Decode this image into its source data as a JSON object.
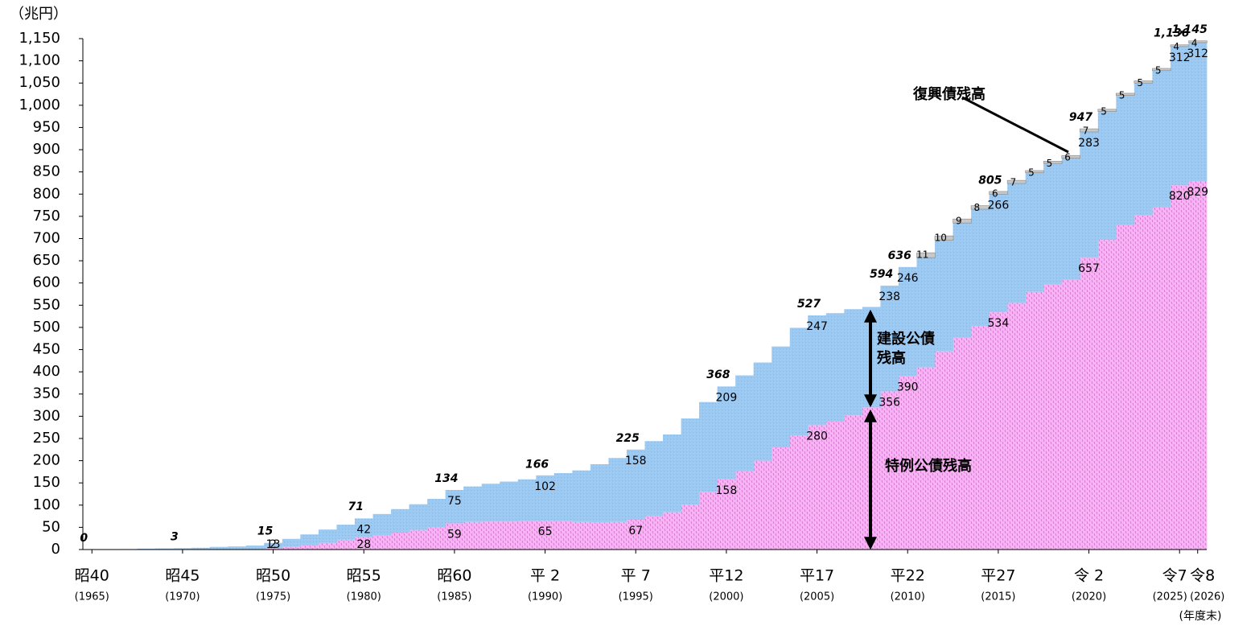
{
  "chart_data": {
    "type": "stacked-step",
    "y_unit": "（兆円）",
    "x_unit": "(年度末)",
    "x": [
      1965,
      1966,
      1967,
      1968,
      1969,
      1970,
      1971,
      1972,
      1973,
      1974,
      1975,
      1976,
      1977,
      1978,
      1979,
      1980,
      1981,
      1982,
      1983,
      1984,
      1985,
      1986,
      1987,
      1988,
      1989,
      1990,
      1991,
      1992,
      1993,
      1994,
      1995,
      1996,
      1997,
      1998,
      1999,
      2000,
      2001,
      2002,
      2003,
      2004,
      2005,
      2006,
      2007,
      2008,
      2009,
      2010,
      2011,
      2012,
      2013,
      2014,
      2015,
      2016,
      2017,
      2018,
      2019,
      2020,
      2021,
      2022,
      2023,
      2024,
      2025,
      2026
    ],
    "xlim": [
      1964.5,
      2026.5
    ],
    "xticks": [
      {
        "value": 1965,
        "label": "昭40",
        "sublabel": "(1965)"
      },
      {
        "value": 1970,
        "label": "昭45",
        "sublabel": "(1970)"
      },
      {
        "value": 1975,
        "label": "昭50",
        "sublabel": "(1975)"
      },
      {
        "value": 1980,
        "label": "昭55",
        "sublabel": "(1980)"
      },
      {
        "value": 1985,
        "label": "昭60",
        "sublabel": "(1985)"
      },
      {
        "value": 1990,
        "label": "平 2",
        "sublabel": "(1990)"
      },
      {
        "value": 1995,
        "label": "平 7",
        "sublabel": "(1995)"
      },
      {
        "value": 2000,
        "label": "平12",
        "sublabel": "(2000)"
      },
      {
        "value": 2005,
        "label": "平17",
        "sublabel": "(2005)"
      },
      {
        "value": 2010,
        "label": "平22",
        "sublabel": "(2010)"
      },
      {
        "value": 2015,
        "label": "平27",
        "sublabel": "(2015)"
      },
      {
        "value": 2020,
        "label": "令 2",
        "sublabel": "(2020)"
      },
      {
        "value": 2025,
        "label": "令7",
        "sublabel": "(2025)"
      },
      {
        "value": 2026,
        "label": "令8",
        "sublabel": "(2026)"
      }
    ],
    "ylim": [
      0,
      1150
    ],
    "yticks": [
      0,
      50,
      100,
      150,
      200,
      250,
      300,
      350,
      400,
      450,
      500,
      550,
      600,
      650,
      700,
      750,
      800,
      850,
      900,
      950,
      {
        "value": 1000,
        "label": "1,000"
      },
      {
        "value": 1050,
        "label": "1,050"
      },
      {
        "value": 1100,
        "label": "1,100"
      },
      {
        "value": 1150,
        "label": "1,150"
      }
    ],
    "series": [
      {
        "name": "特例公債残高",
        "color": "#f7b3f3",
        "values": [
          0,
          0,
          0,
          0,
          0,
          0,
          0,
          0,
          0,
          0,
          2,
          6,
          10,
          15,
          22,
          28,
          32,
          38,
          44,
          50,
          59,
          62,
          63,
          63,
          64,
          65,
          64,
          62,
          61,
          62,
          67,
          76,
          84,
          101,
          130,
          158,
          176,
          200,
          230,
          257,
          280,
          288,
          302,
          320,
          356,
          390,
          410,
          446,
          477,
          503,
          534,
          555,
          580,
          597,
          607,
          657,
          697,
          730,
          752,
          770,
          820,
          829
        ],
        "value_labels": [
          null,
          null,
          null,
          null,
          null,
          null,
          null,
          null,
          null,
          null,
          "2",
          null,
          null,
          null,
          null,
          "28",
          null,
          null,
          null,
          null,
          "59",
          null,
          null,
          null,
          null,
          "65",
          null,
          null,
          null,
          null,
          "67",
          null,
          null,
          null,
          null,
          "158",
          null,
          null,
          null,
          null,
          "280",
          null,
          null,
          null,
          "356",
          "390",
          null,
          null,
          null,
          null,
          "534",
          null,
          null,
          null,
          null,
          "657",
          null,
          null,
          null,
          null,
          "820",
          "829"
        ]
      },
      {
        "name": "建設公債残高",
        "color": "#9ccaf2",
        "values": [
          0,
          0.5,
          1,
          2,
          2.5,
          3,
          4,
          6,
          7,
          9,
          13,
          18,
          24,
          30,
          34,
          42,
          48,
          53,
          58,
          64,
          75,
          80,
          85,
          90,
          94,
          102,
          108,
          116,
          131,
          144,
          158,
          168,
          175,
          194,
          202,
          209,
          216,
          221,
          227,
          242,
          247,
          244,
          239,
          226,
          238,
          246,
          247,
          250,
          258,
          263,
          266,
          269,
          268,
          272,
          274,
          283,
          289,
          292,
          298,
          308,
          312,
          312
        ],
        "value_labels": [
          null,
          null,
          null,
          null,
          null,
          null,
          null,
          null,
          null,
          null,
          "13",
          null,
          null,
          null,
          null,
          "42",
          null,
          null,
          null,
          null,
          "75",
          null,
          null,
          null,
          null,
          "102",
          null,
          null,
          null,
          null,
          "158",
          null,
          null,
          null,
          null,
          "209",
          null,
          null,
          null,
          null,
          "247",
          null,
          null,
          null,
          "238",
          "246",
          null,
          null,
          null,
          null,
          "266",
          null,
          null,
          null,
          null,
          "283",
          null,
          null,
          null,
          null,
          "312",
          "312"
        ]
      },
      {
        "name": "復興債残高",
        "color": "#c8c8c8",
        "values": [
          null,
          null,
          null,
          null,
          null,
          null,
          null,
          null,
          null,
          null,
          null,
          null,
          null,
          null,
          null,
          null,
          null,
          null,
          null,
          null,
          null,
          null,
          null,
          null,
          null,
          null,
          null,
          null,
          null,
          null,
          null,
          null,
          null,
          null,
          null,
          null,
          null,
          null,
          null,
          null,
          null,
          null,
          null,
          null,
          null,
          null,
          11,
          10,
          9,
          8,
          6,
          7,
          5,
          5,
          6,
          7,
          5,
          5,
          5,
          5,
          4,
          4
        ]
      }
    ],
    "totals": {
      "x": [
        1965,
        1970,
        1975,
        1980,
        1985,
        1990,
        1995,
        2000,
        2005,
        2009,
        2010,
        2015,
        2020,
        2025,
        2026
      ],
      "values": [
        0,
        3,
        15,
        71,
        134,
        166,
        225,
        368,
        527,
        594,
        636,
        805,
        947,
        1136,
        1145
      ],
      "value_labels": [
        "0",
        "3",
        "15",
        "71",
        "134",
        "166",
        "225",
        "368",
        "527",
        "594",
        "636",
        "805",
        "947",
        "1,136",
        "1,145"
      ]
    }
  }
}
